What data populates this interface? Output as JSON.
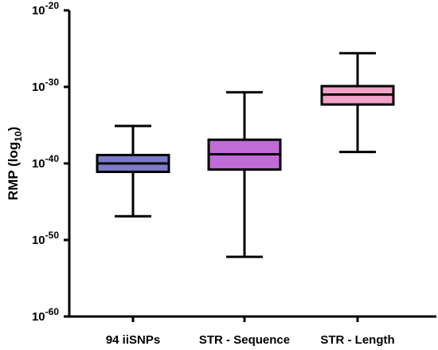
{
  "chart_data": {
    "type": "box",
    "log_scale": true,
    "ylabel": "RMP (log",
    "ylabel_sub": "10",
    "ylabel_close": ")",
    "ylim_exp": [
      -60,
      -20
    ],
    "y_ticks": [
      {
        "base": "10",
        "exp": "-20",
        "value": -20
      },
      {
        "base": "10",
        "exp": "-30",
        "value": -30
      },
      {
        "base": "10",
        "exp": "-40",
        "value": -40
      },
      {
        "base": "10",
        "exp": "-50",
        "value": -50
      },
      {
        "base": "10",
        "exp": "-60",
        "value": -60
      }
    ],
    "categories": [
      "94 iiSNPs",
      "STR - Sequence",
      "STR - Length"
    ],
    "boxes": [
      {
        "category": "94 iiSNPs",
        "min_exp": -46.9,
        "q1_exp": -41.1,
        "median_exp": -40.0,
        "q3_exp": -38.9,
        "max_exp": -35.1,
        "color": "#7b7bc8"
      },
      {
        "category": "STR - Sequence",
        "min_exp": -52.2,
        "q1_exp": -40.8,
        "median_exp": -38.8,
        "q3_exp": -36.9,
        "max_exp": -30.7,
        "color": "#c06bd8"
      },
      {
        "category": "STR - Length",
        "min_exp": -38.5,
        "q1_exp": -32.3,
        "median_exp": -31.0,
        "q3_exp": -29.9,
        "max_exp": -25.6,
        "color": "#f2a3c9"
      }
    ]
  }
}
